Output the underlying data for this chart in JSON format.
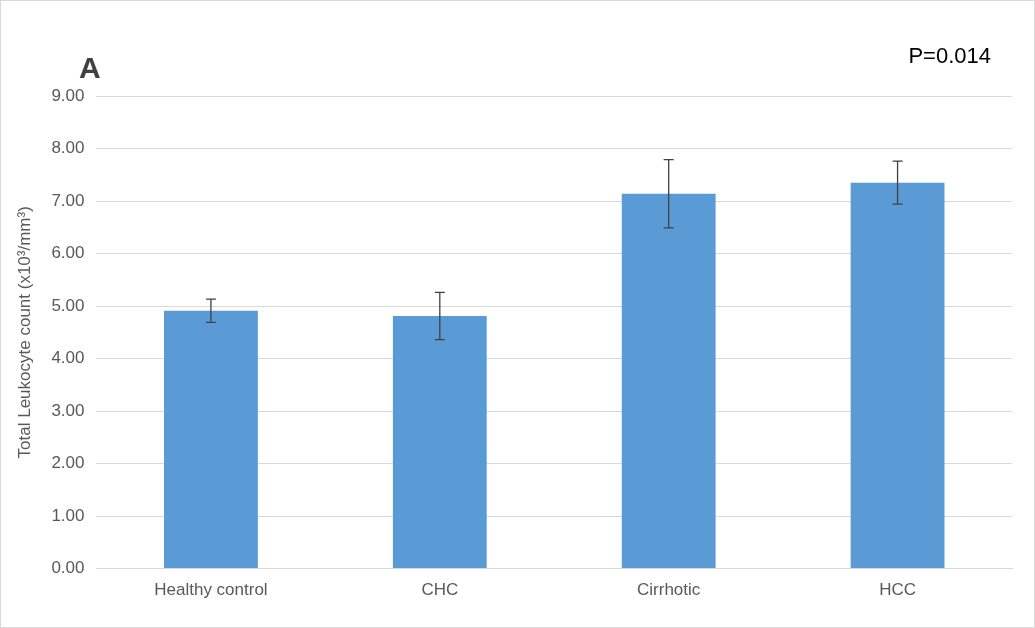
{
  "chart_data": {
    "type": "bar",
    "ylabel": "Total Leukocyte count (x10³/mm³)",
    "categories": [
      "Healthy control",
      "CHC",
      "Cirrhotic",
      "HCC"
    ],
    "values": [
      4.91,
      4.81,
      7.14,
      7.35
    ],
    "errors": [
      0.22,
      0.45,
      0.65,
      0.41
    ],
    "color": "#5b9bd5",
    "ylim": [
      0,
      9
    ],
    "yticks": [
      {
        "value": 0,
        "label": "0.00"
      },
      {
        "value": 1,
        "label": "1.00"
      },
      {
        "value": 2,
        "label": "2.00"
      },
      {
        "value": 3,
        "label": "3.00"
      },
      {
        "value": 4,
        "label": "4.00"
      },
      {
        "value": 5,
        "label": "5.00"
      },
      {
        "value": 6,
        "label": "6.00"
      },
      {
        "value": 7,
        "label": "7.00"
      },
      {
        "value": 8,
        "label": "8.00"
      },
      {
        "value": 9,
        "label": "9.00"
      }
    ],
    "grid": "y",
    "annotations": [
      "A",
      "P=0.014"
    ]
  }
}
